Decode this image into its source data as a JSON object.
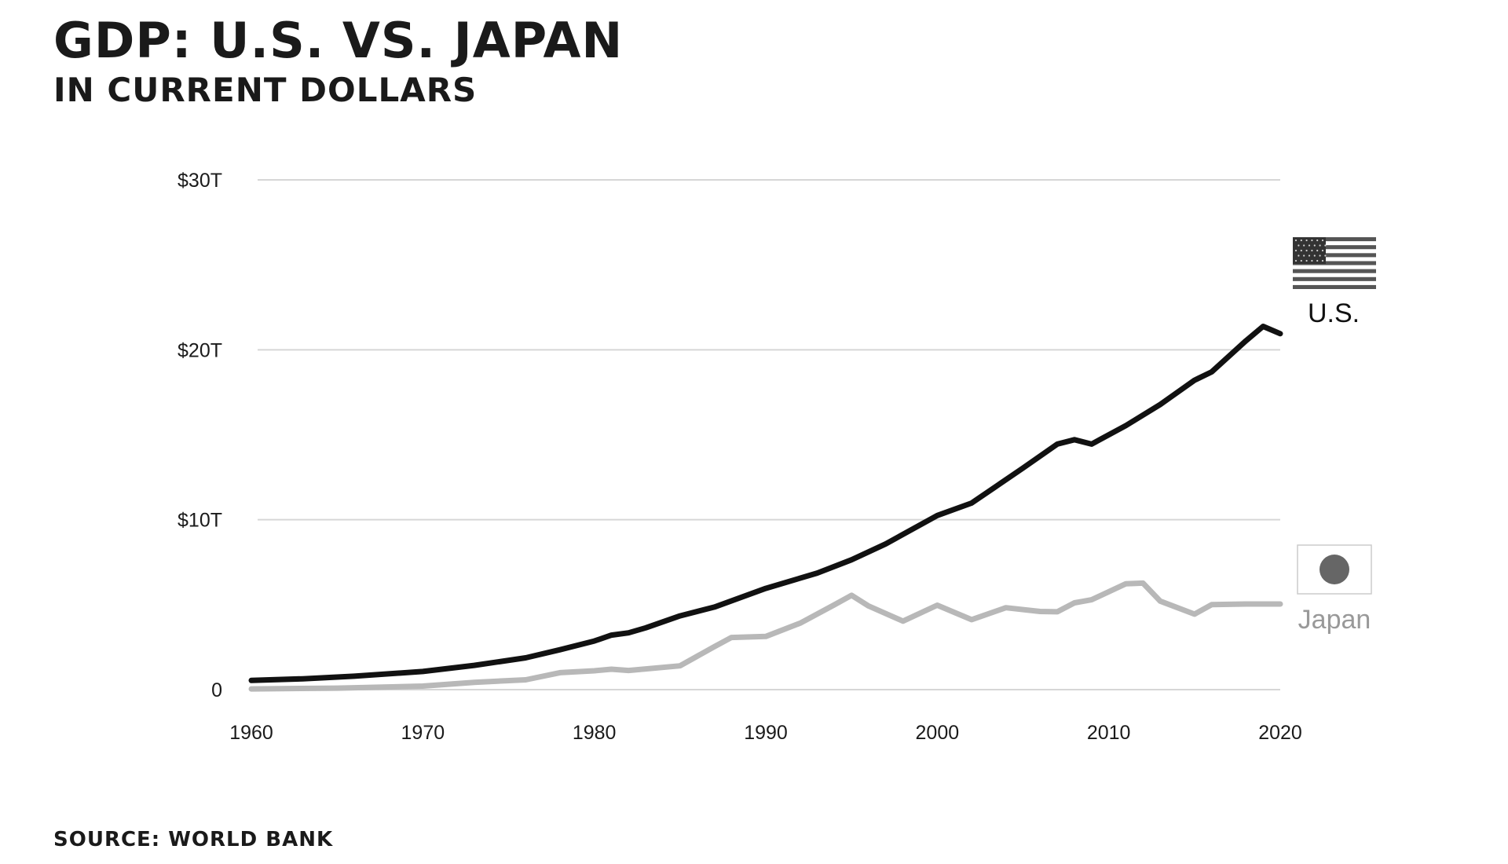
{
  "header": {
    "title": "GDP: U.S. VS. JAPAN",
    "subtitle": "IN CURRENT DOLLARS"
  },
  "footer": {
    "source": "SOURCE: WORLD BANK"
  },
  "colors": {
    "us": "#111111",
    "japan": "#b8b8b8",
    "grid": "#d6d6d6",
    "japan_label": "#999999",
    "flag_stripes": "#555555",
    "flag_canton": "#333333",
    "japan_disc": "#666666"
  },
  "chart_data": {
    "type": "line",
    "xlim": [
      1960,
      2020
    ],
    "ylim": [
      0,
      30
    ],
    "yunit": "trillion USD",
    "grid": "horizontal",
    "x_ticks": [
      {
        "value": 1960,
        "label": "1960"
      },
      {
        "value": 1970,
        "label": "1970"
      },
      {
        "value": 1980,
        "label": "1980"
      },
      {
        "value": 1990,
        "label": "1990"
      },
      {
        "value": 2000,
        "label": "2000"
      },
      {
        "value": 2010,
        "label": "2010"
      },
      {
        "value": 2020,
        "label": "2020"
      }
    ],
    "y_ticks": [
      {
        "value": 0,
        "label": "0"
      },
      {
        "value": 10,
        "label": "$10T"
      },
      {
        "value": 20,
        "label": "$20T"
      },
      {
        "value": 30,
        "label": "$30T"
      }
    ],
    "series": [
      {
        "name": "U.S.",
        "label_icon": "us-flag-icon",
        "x": [
          1960,
          1963,
          1966,
          1970,
          1973,
          1976,
          1978,
          1980,
          1981,
          1982,
          1983,
          1985,
          1987,
          1990,
          1993,
          1995,
          1997,
          2000,
          2002,
          2005,
          2007,
          2008,
          2009,
          2011,
          2013,
          2015,
          2016,
          2018,
          2019,
          2020
        ],
        "values": [
          0.54,
          0.64,
          0.79,
          1.07,
          1.43,
          1.87,
          2.35,
          2.86,
          3.21,
          3.34,
          3.64,
          4.34,
          4.86,
          5.96,
          6.86,
          7.64,
          8.58,
          10.25,
          10.98,
          13.04,
          14.45,
          14.71,
          14.45,
          15.54,
          16.78,
          18.21,
          18.7,
          20.53,
          21.38,
          20.95
        ]
      },
      {
        "name": "Japan",
        "label_icon": "japan-flag-icon",
        "x": [
          1960,
          1965,
          1970,
          1973,
          1976,
          1978,
          1980,
          1981,
          1982,
          1985,
          1987,
          1988,
          1990,
          1992,
          1994,
          1995,
          1996,
          1998,
          2000,
          2002,
          2004,
          2006,
          2007,
          2008,
          2009,
          2011,
          2012,
          2013,
          2015,
          2016,
          2018,
          2020
        ],
        "values": [
          0.04,
          0.09,
          0.21,
          0.43,
          0.58,
          1.0,
          1.11,
          1.2,
          1.13,
          1.4,
          2.53,
          3.07,
          3.13,
          3.91,
          4.99,
          5.55,
          4.92,
          4.03,
          4.97,
          4.12,
          4.82,
          4.6,
          4.58,
          5.11,
          5.29,
          6.23,
          6.27,
          5.21,
          4.44,
          5.0,
          5.04,
          5.04
        ]
      }
    ]
  }
}
